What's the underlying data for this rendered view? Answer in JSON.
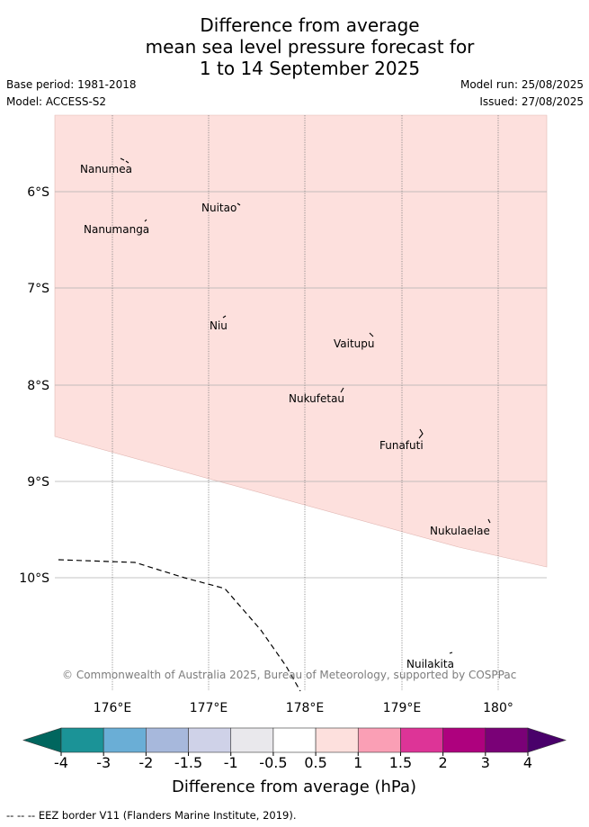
{
  "title_lines": [
    "Difference from average",
    "mean sea level pressure forecast for",
    "1 to 14 September 2025"
  ],
  "meta": {
    "base_period": "Base period: 1981-2018",
    "model": "Model: ACCESS-S2",
    "model_run": "Model run: 25/08/2025",
    "issued": "Issued: 27/08/2025"
  },
  "map": {
    "lon_ticks": [
      "176°E",
      "177°E",
      "178°E",
      "179°E",
      "180°"
    ],
    "lat_ticks": [
      "6°S",
      "7°S",
      "8°S",
      "9°S",
      "10°S"
    ],
    "places": [
      "Nanumea",
      "Nuitao",
      "Nanumanga",
      "Niu",
      "Vaitupu",
      "Nukufetau",
      "Funafuti",
      "Nukulaelae",
      "Nuilakita"
    ],
    "copyright": "© Commonwealth of Australia 2025, Bureau of Meteorology, supported by COSPPac",
    "anomaly_fill_color": "#fde0dd",
    "anomaly_fill_class": "0.5 to 1 hPa"
  },
  "colorbar": {
    "ticks": [
      "-4",
      "-3",
      "-2",
      "-1.5",
      "-1",
      "-0.5",
      "0.5",
      "1",
      "1.5",
      "2",
      "3",
      "4"
    ],
    "colors": [
      "#00665e",
      "#1b9397",
      "#6aaed6",
      "#a7b8dc",
      "#cfd2e8",
      "#e9e8ec",
      "#ffffff",
      "#fde0dd",
      "#fa9fb5",
      "#dd3497",
      "#ae017e",
      "#7a0177",
      "#49006a"
    ],
    "label": "Difference from average (hPa)"
  },
  "footer": "-- -- -- EEZ border V11 (Flanders Marine Institute, 2019)."
}
